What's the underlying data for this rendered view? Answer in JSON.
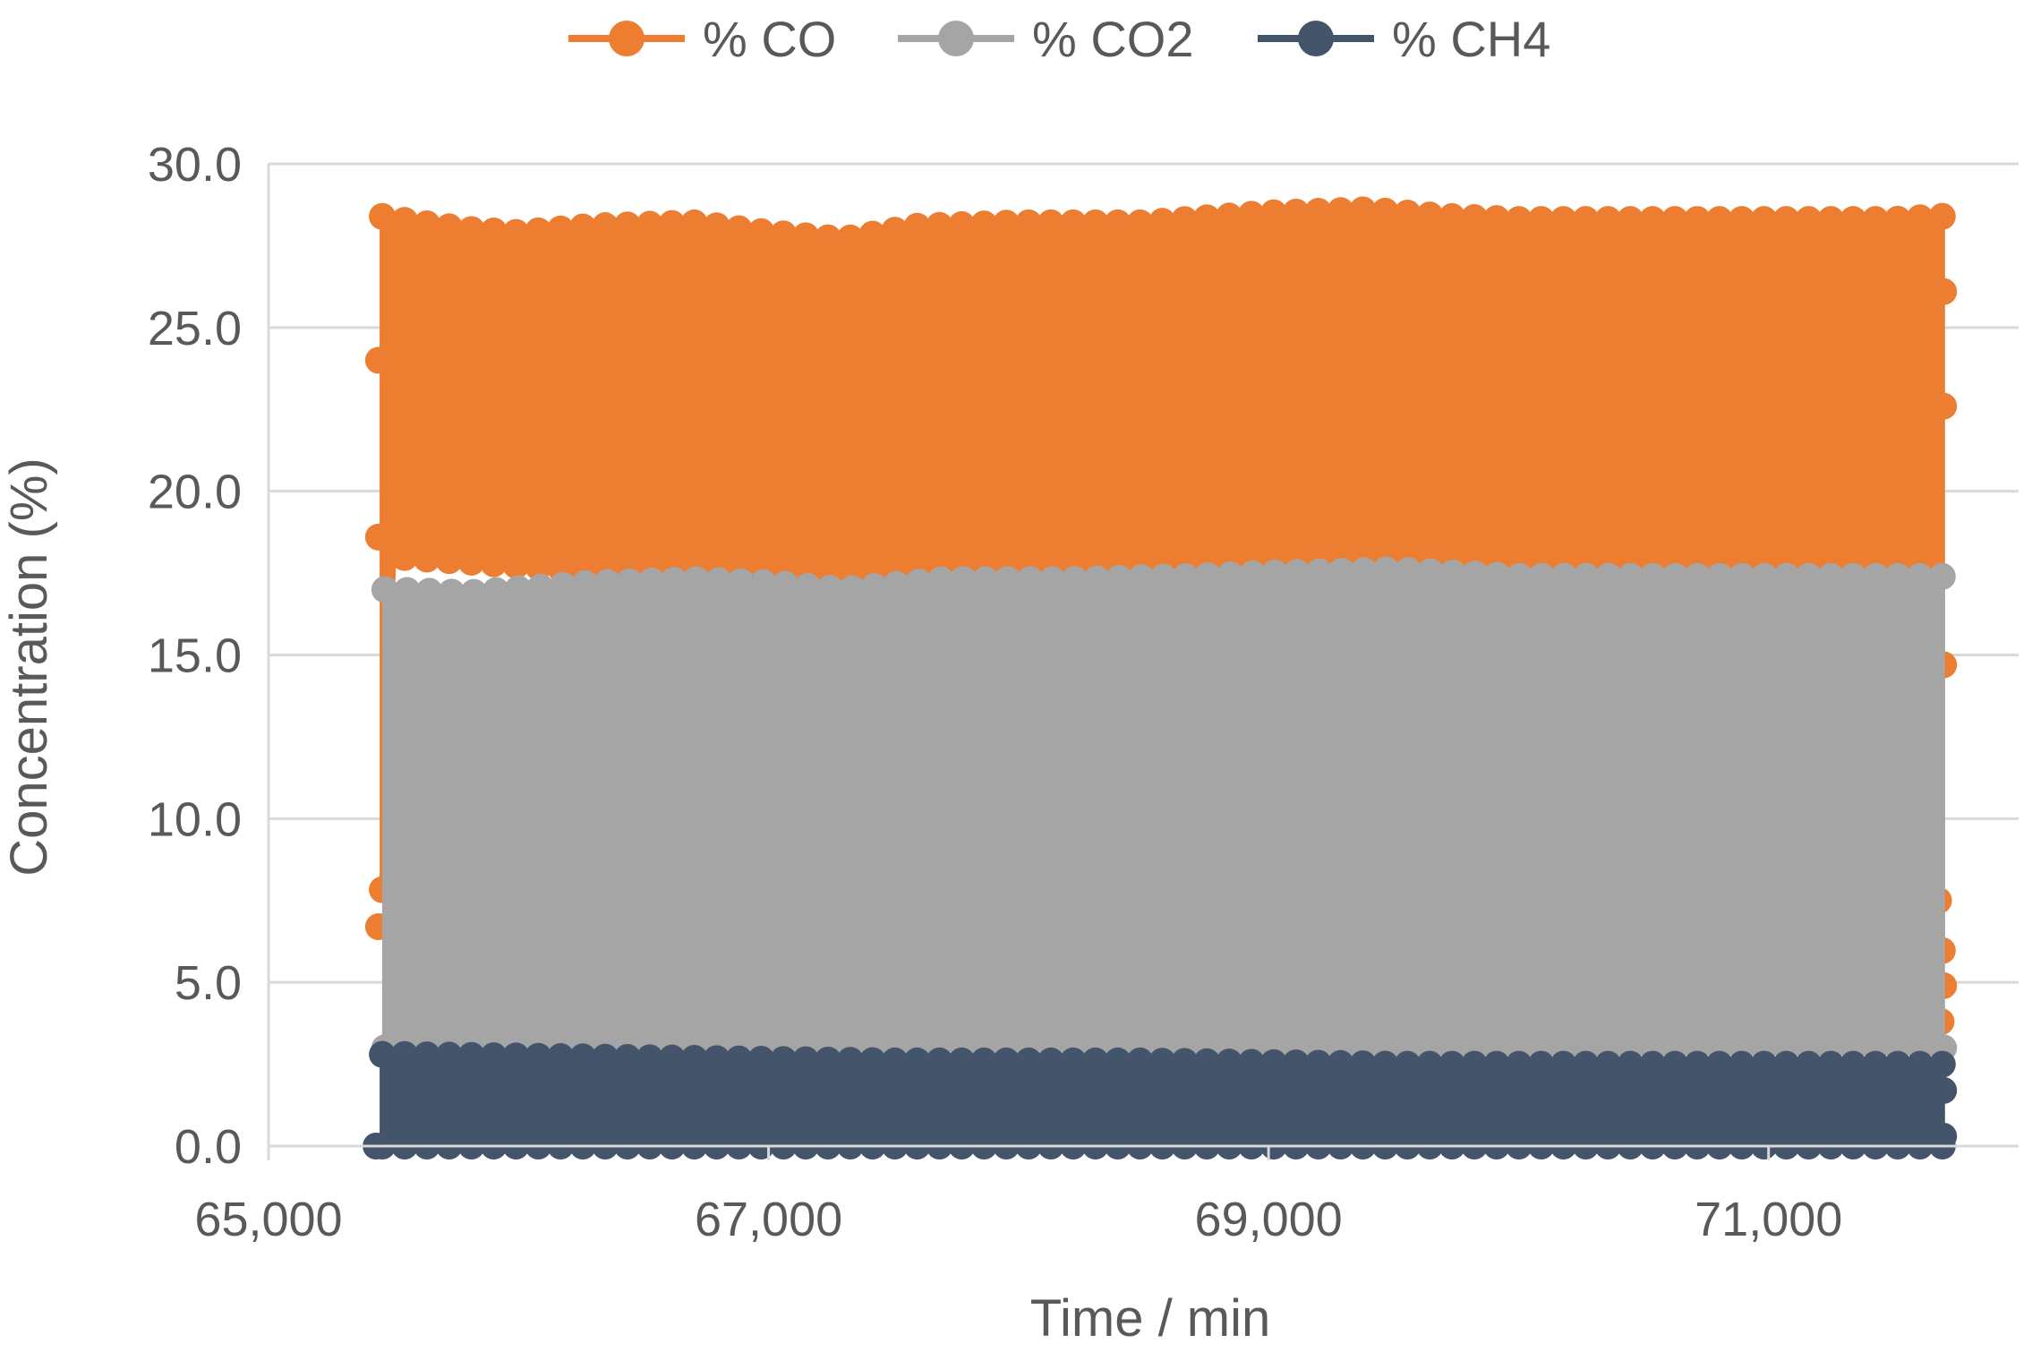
{
  "chart_data": {
    "type": "scatter",
    "title": "",
    "xlabel": "Time / min",
    "ylabel": "Concentration (%)",
    "xlim": [
      65000,
      72000
    ],
    "ylim": [
      0,
      30
    ],
    "x_ticks": [
      65000,
      67000,
      69000,
      71000
    ],
    "x_tick_labels": [
      "65,000",
      "67,000",
      "69,000",
      "71,000"
    ],
    "y_ticks": [
      0,
      5,
      10,
      15,
      20,
      25,
      30
    ],
    "y_tick_labels": [
      "0.0",
      "5.0",
      "10.0",
      "15.0",
      "20.0",
      "25.0",
      "30.0"
    ],
    "grid": "horizontal",
    "legend_position": "top",
    "markers": "circle with line",
    "series": [
      {
        "name": "% CO",
        "color": "#ED7D31",
        "x_range": [
          65430,
          71720
        ],
        "upper_envelope": [
          [
            65450,
            28.4
          ],
          [
            65600,
            28.2
          ],
          [
            65800,
            28.0
          ],
          [
            66000,
            27.9
          ],
          [
            66300,
            28.1
          ],
          [
            66700,
            28.2
          ],
          [
            67000,
            27.9
          ],
          [
            67300,
            27.7
          ],
          [
            67600,
            28.1
          ],
          [
            68000,
            28.2
          ],
          [
            68500,
            28.2
          ],
          [
            69000,
            28.5
          ],
          [
            69400,
            28.6
          ],
          [
            69700,
            28.4
          ],
          [
            70000,
            28.3
          ],
          [
            70500,
            28.3
          ],
          [
            71000,
            28.3
          ],
          [
            71500,
            28.3
          ],
          [
            71700,
            28.4
          ]
        ],
        "lower_envelope": [
          [
            65450,
            6.7
          ],
          [
            65500,
            18.0
          ],
          [
            71650,
            14.7
          ],
          [
            71700,
            5.0
          ],
          [
            71720,
            3.8
          ]
        ],
        "notable_points": [
          [
            65440,
            24.0
          ],
          [
            65440,
            18.6
          ],
          [
            65440,
            6.7
          ],
          [
            71700,
            26.1
          ],
          [
            71700,
            22.6
          ],
          [
            71700,
            14.7
          ],
          [
            71680,
            7.5
          ],
          [
            71700,
            4.9
          ],
          [
            71690,
            3.8
          ]
        ]
      },
      {
        "name": "% CO2",
        "color": "#A5A5A5",
        "x_range": [
          65440,
          71720
        ],
        "upper_envelope": [
          [
            65450,
            17.0
          ],
          [
            65800,
            16.9
          ],
          [
            66300,
            17.2
          ],
          [
            66700,
            17.3
          ],
          [
            67000,
            17.2
          ],
          [
            67300,
            17.0
          ],
          [
            67700,
            17.3
          ],
          [
            68200,
            17.3
          ],
          [
            68700,
            17.4
          ],
          [
            69000,
            17.5
          ],
          [
            69500,
            17.6
          ],
          [
            70000,
            17.4
          ],
          [
            70500,
            17.4
          ],
          [
            71000,
            17.4
          ],
          [
            71650,
            17.4
          ]
        ],
        "lower_envelope": [
          [
            65450,
            3.0
          ],
          [
            71650,
            3.0
          ]
        ],
        "notable_points": [
          [
            71650,
            15.0
          ],
          [
            71650,
            11.9
          ],
          [
            71700,
            3.0
          ]
        ]
      },
      {
        "name": "% CH4",
        "color": "#44546A",
        "x_range": [
          65430,
          71720
        ],
        "upper_envelope": [
          [
            65500,
            2.8
          ],
          [
            66500,
            2.7
          ],
          [
            67500,
            2.6
          ],
          [
            68500,
            2.6
          ],
          [
            69500,
            2.5
          ],
          [
            70500,
            2.5
          ],
          [
            71600,
            2.5
          ]
        ],
        "lower_envelope": [
          [
            65430,
            0.0
          ],
          [
            71700,
            0.0
          ]
        ],
        "notable_points": [
          [
            65430,
            0.0
          ],
          [
            71700,
            1.7
          ],
          [
            71700,
            0.3
          ]
        ]
      }
    ]
  }
}
